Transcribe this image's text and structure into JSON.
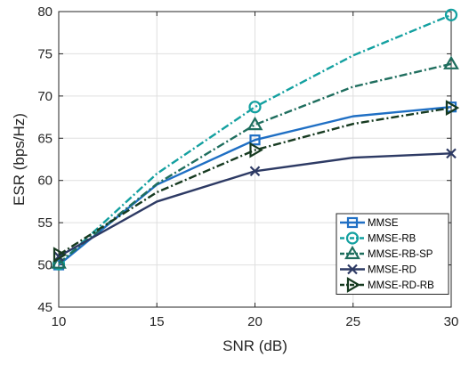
{
  "chart_data": {
    "type": "line",
    "title": "",
    "xlabel": "SNR (dB)",
    "ylabel": "ESR (bps/Hz)",
    "x": [
      10,
      15,
      20,
      25,
      30
    ],
    "xticks": [
      10,
      15,
      20,
      25,
      30
    ],
    "yticks": [
      45,
      50,
      55,
      60,
      65,
      70,
      75,
      80
    ],
    "xlim": [
      10,
      30
    ],
    "ylim": [
      45,
      80
    ],
    "grid": true,
    "legend_position": "bottom-right",
    "series": [
      {
        "name": "MMSE",
        "values": [
          50.0,
          59.5,
          64.8,
          67.6,
          68.7
        ],
        "color": "#1f6fc4",
        "dash": "solid",
        "marker": "square",
        "marker_indices": [
          0,
          2,
          4
        ]
      },
      {
        "name": "MMSE-RB",
        "values": [
          50.1,
          60.8,
          68.7,
          74.8,
          79.6
        ],
        "color": "#13a0a0",
        "dash": "dashdot",
        "marker": "circle",
        "marker_indices": [
          0,
          2,
          4
        ]
      },
      {
        "name": "MMSE-RB-SP",
        "values": [
          50.2,
          59.6,
          66.6,
          71.1,
          73.8
        ],
        "color": "#1f6e5e",
        "dash": "dashdot",
        "marker": "triangle-up",
        "marker_indices": [
          0,
          2,
          4
        ]
      },
      {
        "name": "MMSE-RD",
        "values": [
          51.0,
          57.5,
          61.1,
          62.7,
          63.2
        ],
        "color": "#2d3a64",
        "dash": "solid",
        "marker": "x",
        "marker_indices": [
          0,
          2,
          4
        ]
      },
      {
        "name": "MMSE-RD-RB",
        "values": [
          51.2,
          58.6,
          63.6,
          66.7,
          68.6
        ],
        "color": "#163a20",
        "dash": "dashdot",
        "marker": "triangle-right",
        "marker_indices": [
          0,
          2,
          4
        ]
      }
    ]
  }
}
